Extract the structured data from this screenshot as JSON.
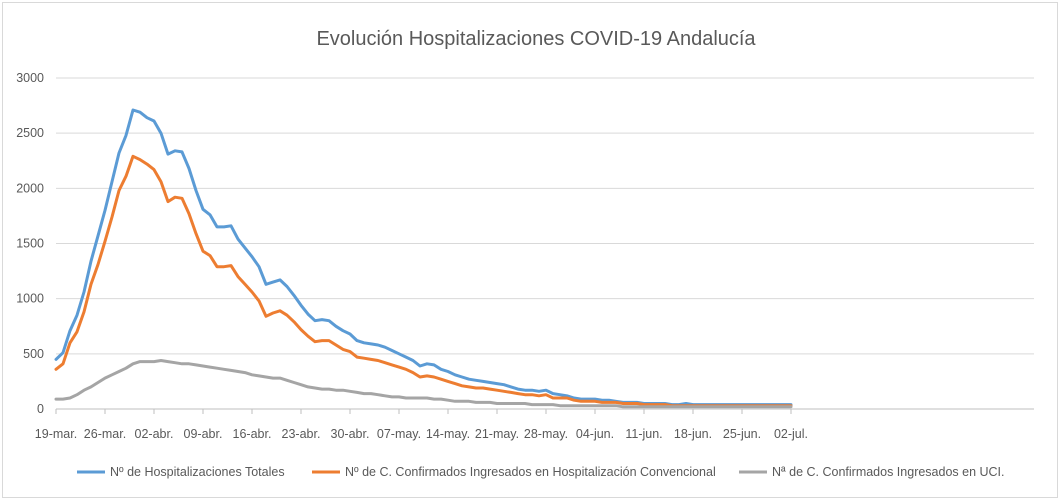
{
  "chart_data": {
    "type": "line",
    "title": "Evolución Hospitalizaciones COVID-19 Andalucía",
    "xlabel": "",
    "ylabel": "",
    "ylim": [
      0,
      3000
    ],
    "yticks": [
      "0",
      "500",
      "1000",
      "1500",
      "2000",
      "2500",
      "3000"
    ],
    "grid": true,
    "legend_position": "bottom",
    "start_date": "2020-03-19",
    "x_tick_labels": [
      "19-mar.",
      "26-mar.",
      "02-abr.",
      "09-abr.",
      "16-abr.",
      "23-abr.",
      "30-abr.",
      "07-may.",
      "14-may.",
      "21-may.",
      "28-may.",
      "04-jun.",
      "11-jun.",
      "18-jun.",
      "25-jun.",
      "02-jul."
    ],
    "series": [
      {
        "name": "Nº de Hospitalizaciones Totales",
        "color": "#5b9bd5",
        "values": [
          450,
          510,
          710,
          850,
          1060,
          1340,
          1570,
          1800,
          2060,
          2320,
          2480,
          2710,
          2690,
          2640,
          2610,
          2500,
          2310,
          2340,
          2330,
          2180,
          1980,
          1810,
          1760,
          1650,
          1650,
          1660,
          1540,
          1460,
          1380,
          1290,
          1130,
          1150,
          1170,
          1110,
          1030,
          940,
          860,
          800,
          810,
          800,
          750,
          710,
          680,
          620,
          600,
          590,
          580,
          560,
          530,
          500,
          470,
          440,
          390,
          410,
          400,
          360,
          340,
          310,
          290,
          270,
          260,
          250,
          240,
          230,
          220,
          200,
          180,
          170,
          170,
          160,
          170,
          140,
          130,
          120,
          100,
          90,
          90,
          90,
          80,
          80,
          70,
          60,
          60,
          60,
          50,
          50,
          50,
          50,
          40,
          40,
          50,
          40,
          40,
          40,
          40,
          40,
          40,
          40,
          40,
          40,
          40,
          40,
          40,
          40,
          40,
          40
        ]
      },
      {
        "name": "Nº de C. Confirmados Ingresados en Hospitalización Convencional",
        "color": "#ed7d31",
        "values": [
          360,
          410,
          600,
          700,
          880,
          1130,
          1310,
          1520,
          1740,
          1980,
          2110,
          2290,
          2260,
          2220,
          2170,
          2060,
          1880,
          1920,
          1910,
          1770,
          1590,
          1430,
          1390,
          1290,
          1290,
          1300,
          1200,
          1130,
          1060,
          980,
          840,
          870,
          890,
          850,
          790,
          720,
          660,
          610,
          620,
          620,
          580,
          540,
          520,
          470,
          460,
          450,
          440,
          420,
          400,
          380,
          360,
          330,
          290,
          300,
          290,
          270,
          250,
          230,
          210,
          200,
          190,
          190,
          180,
          170,
          160,
          150,
          140,
          130,
          130,
          120,
          130,
          100,
          100,
          100,
          80,
          70,
          70,
          70,
          60,
          60,
          60,
          50,
          50,
          50,
          40,
          40,
          40,
          40,
          30,
          30,
          30,
          30,
          30,
          30,
          30,
          30,
          30,
          30,
          30,
          30,
          30,
          30,
          30,
          30,
          30,
          30
        ]
      },
      {
        "name": "Nª de C. Confirmados Ingresados en UCI.",
        "color": "#a5a5a5",
        "values": [
          90,
          90,
          100,
          130,
          170,
          200,
          240,
          280,
          310,
          340,
          370,
          410,
          430,
          430,
          430,
          440,
          430,
          420,
          410,
          410,
          400,
          390,
          380,
          370,
          360,
          350,
          340,
          330,
          310,
          300,
          290,
          280,
          280,
          260,
          240,
          220,
          200,
          190,
          180,
          180,
          170,
          170,
          160,
          150,
          140,
          140,
          130,
          120,
          110,
          110,
          100,
          100,
          100,
          100,
          90,
          90,
          80,
          70,
          70,
          70,
          60,
          60,
          60,
          50,
          50,
          50,
          50,
          50,
          40,
          40,
          40,
          40,
          30,
          30,
          30,
          30,
          30,
          30,
          30,
          30,
          30,
          20,
          20,
          20,
          20,
          20,
          20,
          20,
          20,
          20,
          20,
          20,
          20,
          20,
          20,
          20,
          20,
          20,
          20,
          20,
          20,
          20,
          20,
          20,
          20,
          20
        ]
      }
    ]
  }
}
